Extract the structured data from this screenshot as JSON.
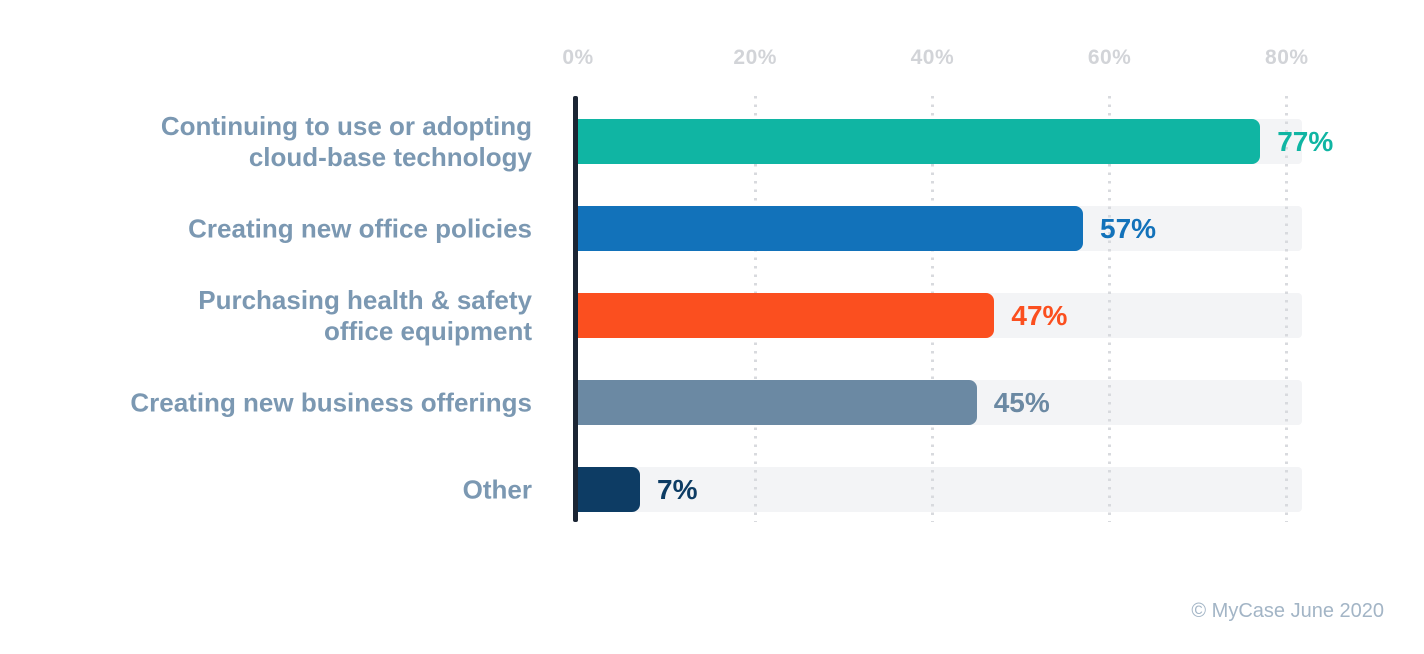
{
  "chart_data": {
    "type": "bar",
    "orientation": "horizontal",
    "title": "",
    "categories": [
      "Continuing to use or adopting\ncloud-base technology",
      "Creating new office policies",
      "Purchasing health & safety\noffice equipment",
      "Creating new business offerings",
      "Other"
    ],
    "values": [
      77,
      57,
      47,
      45,
      7
    ],
    "value_labels": [
      "77%",
      "57%",
      "47%",
      "45%",
      "7%"
    ],
    "bar_colors": [
      "#10b5a3",
      "#1272ba",
      "#fb4f1f",
      "#6b89a3",
      "#0d3c64"
    ],
    "x_ticks": [
      {
        "label": "0%",
        "value": 0
      },
      {
        "label": "20%",
        "value": 20
      },
      {
        "label": "40%",
        "value": 40
      },
      {
        "label": "60%",
        "value": 60
      },
      {
        "label": "80%",
        "value": 80
      }
    ],
    "xlim": [
      0,
      81.7
    ],
    "grid": "vertical-dotted",
    "legend": "none",
    "attribution": "© MyCase June 2020"
  },
  "style": {
    "background": "#ffffff",
    "track_color": "#f3f4f6",
    "axis_line_color": "#1b2534",
    "grid_color": "#d8dade",
    "tick_label_color": "#d2d4d8",
    "category_label_color": "#7b98b2",
    "attribution_color": "#a3b5c6"
  }
}
